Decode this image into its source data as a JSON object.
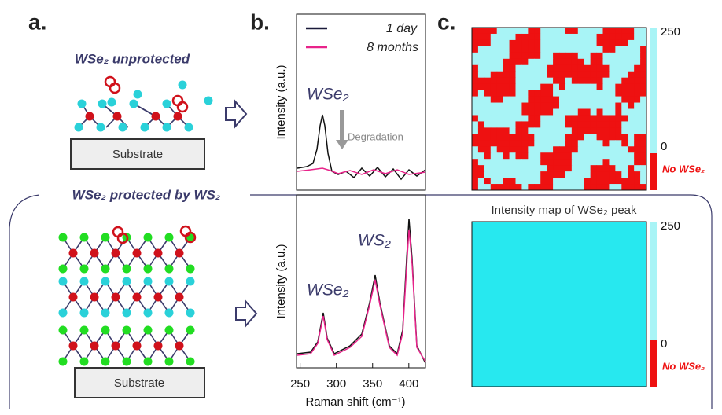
{
  "panel_labels": [
    "a.",
    "b.",
    "c."
  ],
  "panel_a": {
    "unprotected_title": "WSe₂ unprotected",
    "protected_title": "WSe₂ protected by WS₂",
    "substrate_labels": [
      "Substrate",
      "Substrate"
    ]
  },
  "panel_b": {
    "legend": [
      "1 day",
      "8 months"
    ],
    "y_labels": [
      "Intensity (a.u.)",
      "Intensity (a.u.)"
    ],
    "x_label": "Raman shift (cm⁻¹)",
    "xlim": [
      245,
      423
    ],
    "xticks": [
      250,
      300,
      350,
      400
    ],
    "annotations": {
      "top_wse2": "WSe₂",
      "degradation": "Degradation",
      "bottom_ws2": "WS₂",
      "bottom_wse2": "WSe₂"
    }
  },
  "panel_c": {
    "map_title": "Intensity map of WSe₂ peak",
    "colorbars": [
      {
        "ticks": [
          250,
          0
        ],
        "no_label": "No WSe₂"
      },
      {
        "ticks": [
          250,
          0
        ],
        "no_label": "No WSe₂"
      }
    ]
  }
}
